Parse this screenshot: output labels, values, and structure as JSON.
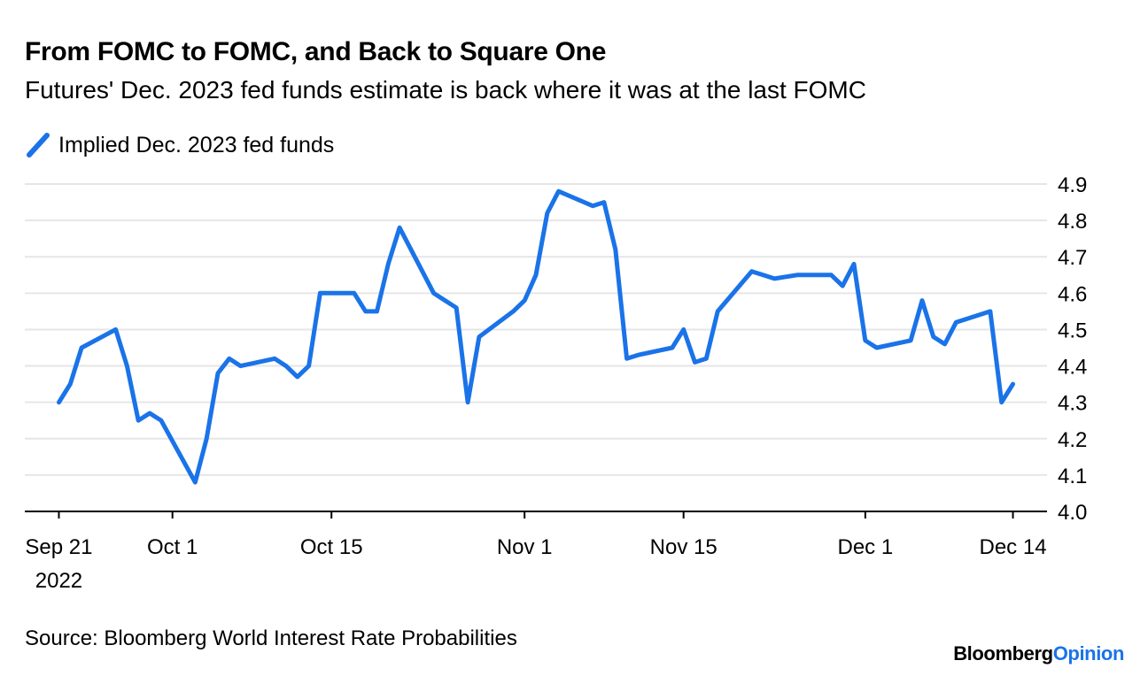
{
  "title": "From FOMC to FOMC, and Back to Square One",
  "subtitle": "Futures' Dec. 2023 fed funds estimate is back where it was at the last FOMC",
  "legend_label": "Implied Dec. 2023 fed funds",
  "source": "Source: Bloomberg World Interest Rate Probabilities",
  "brand": {
    "part1": "Bloomberg",
    "part2": "Opinion"
  },
  "colors": {
    "line": "#1a73e8",
    "grid": "#e6e6e6",
    "axis": "#000000",
    "brand_accent": "#1a73e8"
  },
  "chart_data": {
    "type": "line",
    "title": "From FOMC to FOMC, and Back to Square One",
    "subtitle": "Futures' Dec. 2023 fed funds estimate is back where it was at the last FOMC",
    "xlabel": "",
    "ylabel": "",
    "ylim": [
      4.0,
      4.9
    ],
    "xlim": [
      "2022-09-18",
      "2022-12-17"
    ],
    "y_ticks": [
      "4.0",
      "4.1",
      "4.2",
      "4.3",
      "4.4",
      "4.5",
      "4.6",
      "4.7",
      "4.8",
      "4.9"
    ],
    "x_ticks": [
      {
        "date": "2022-09-21",
        "label": "Sep 21",
        "sublabel": "2022"
      },
      {
        "date": "2022-10-01",
        "label": "Oct 1",
        "sublabel": ""
      },
      {
        "date": "2022-10-15",
        "label": "Oct 15",
        "sublabel": ""
      },
      {
        "date": "2022-11-01",
        "label": "Nov 1",
        "sublabel": ""
      },
      {
        "date": "2022-11-15",
        "label": "Nov 15",
        "sublabel": ""
      },
      {
        "date": "2022-12-01",
        "label": "Dec 1",
        "sublabel": ""
      },
      {
        "date": "2022-12-14",
        "label": "Dec 14",
        "sublabel": ""
      }
    ],
    "grid": true,
    "legend_position": "top-left",
    "series": [
      {
        "name": "Implied Dec. 2023 fed funds",
        "color": "#1a73e8",
        "x": [
          "2022-09-21",
          "2022-09-22",
          "2022-09-23",
          "2022-09-26",
          "2022-09-27",
          "2022-09-28",
          "2022-09-29",
          "2022-09-30",
          "2022-10-03",
          "2022-10-04",
          "2022-10-05",
          "2022-10-06",
          "2022-10-07",
          "2022-10-10",
          "2022-10-11",
          "2022-10-12",
          "2022-10-13",
          "2022-10-14",
          "2022-10-17",
          "2022-10-18",
          "2022-10-19",
          "2022-10-20",
          "2022-10-21",
          "2022-10-24",
          "2022-10-25",
          "2022-10-26",
          "2022-10-27",
          "2022-10-28",
          "2022-10-31",
          "2022-11-01",
          "2022-11-02",
          "2022-11-03",
          "2022-11-04",
          "2022-11-07",
          "2022-11-08",
          "2022-11-09",
          "2022-11-10",
          "2022-11-11",
          "2022-11-14",
          "2022-11-15",
          "2022-11-16",
          "2022-11-17",
          "2022-11-18",
          "2022-11-21",
          "2022-11-22",
          "2022-11-23",
          "2022-11-25",
          "2022-11-28",
          "2022-11-29",
          "2022-11-30",
          "2022-12-01",
          "2022-12-02",
          "2022-12-05",
          "2022-12-06",
          "2022-12-07",
          "2022-12-08",
          "2022-12-09",
          "2022-12-12",
          "2022-12-13",
          "2022-12-14"
        ],
        "values": [
          4.3,
          4.35,
          4.45,
          4.5,
          4.4,
          4.25,
          4.27,
          4.25,
          4.08,
          4.2,
          4.38,
          4.42,
          4.4,
          4.42,
          4.4,
          4.37,
          4.4,
          4.6,
          4.6,
          4.55,
          4.55,
          4.68,
          4.78,
          4.6,
          4.58,
          4.56,
          4.3,
          4.48,
          4.55,
          4.58,
          4.65,
          4.82,
          4.88,
          4.84,
          4.85,
          4.72,
          4.42,
          4.43,
          4.45,
          4.5,
          4.41,
          4.42,
          4.55,
          4.66,
          4.65,
          4.64,
          4.65,
          4.65,
          4.62,
          4.68,
          4.47,
          4.45,
          4.47,
          4.58,
          4.48,
          4.46,
          4.52,
          4.55,
          4.3,
          4.35
        ]
      }
    ]
  }
}
